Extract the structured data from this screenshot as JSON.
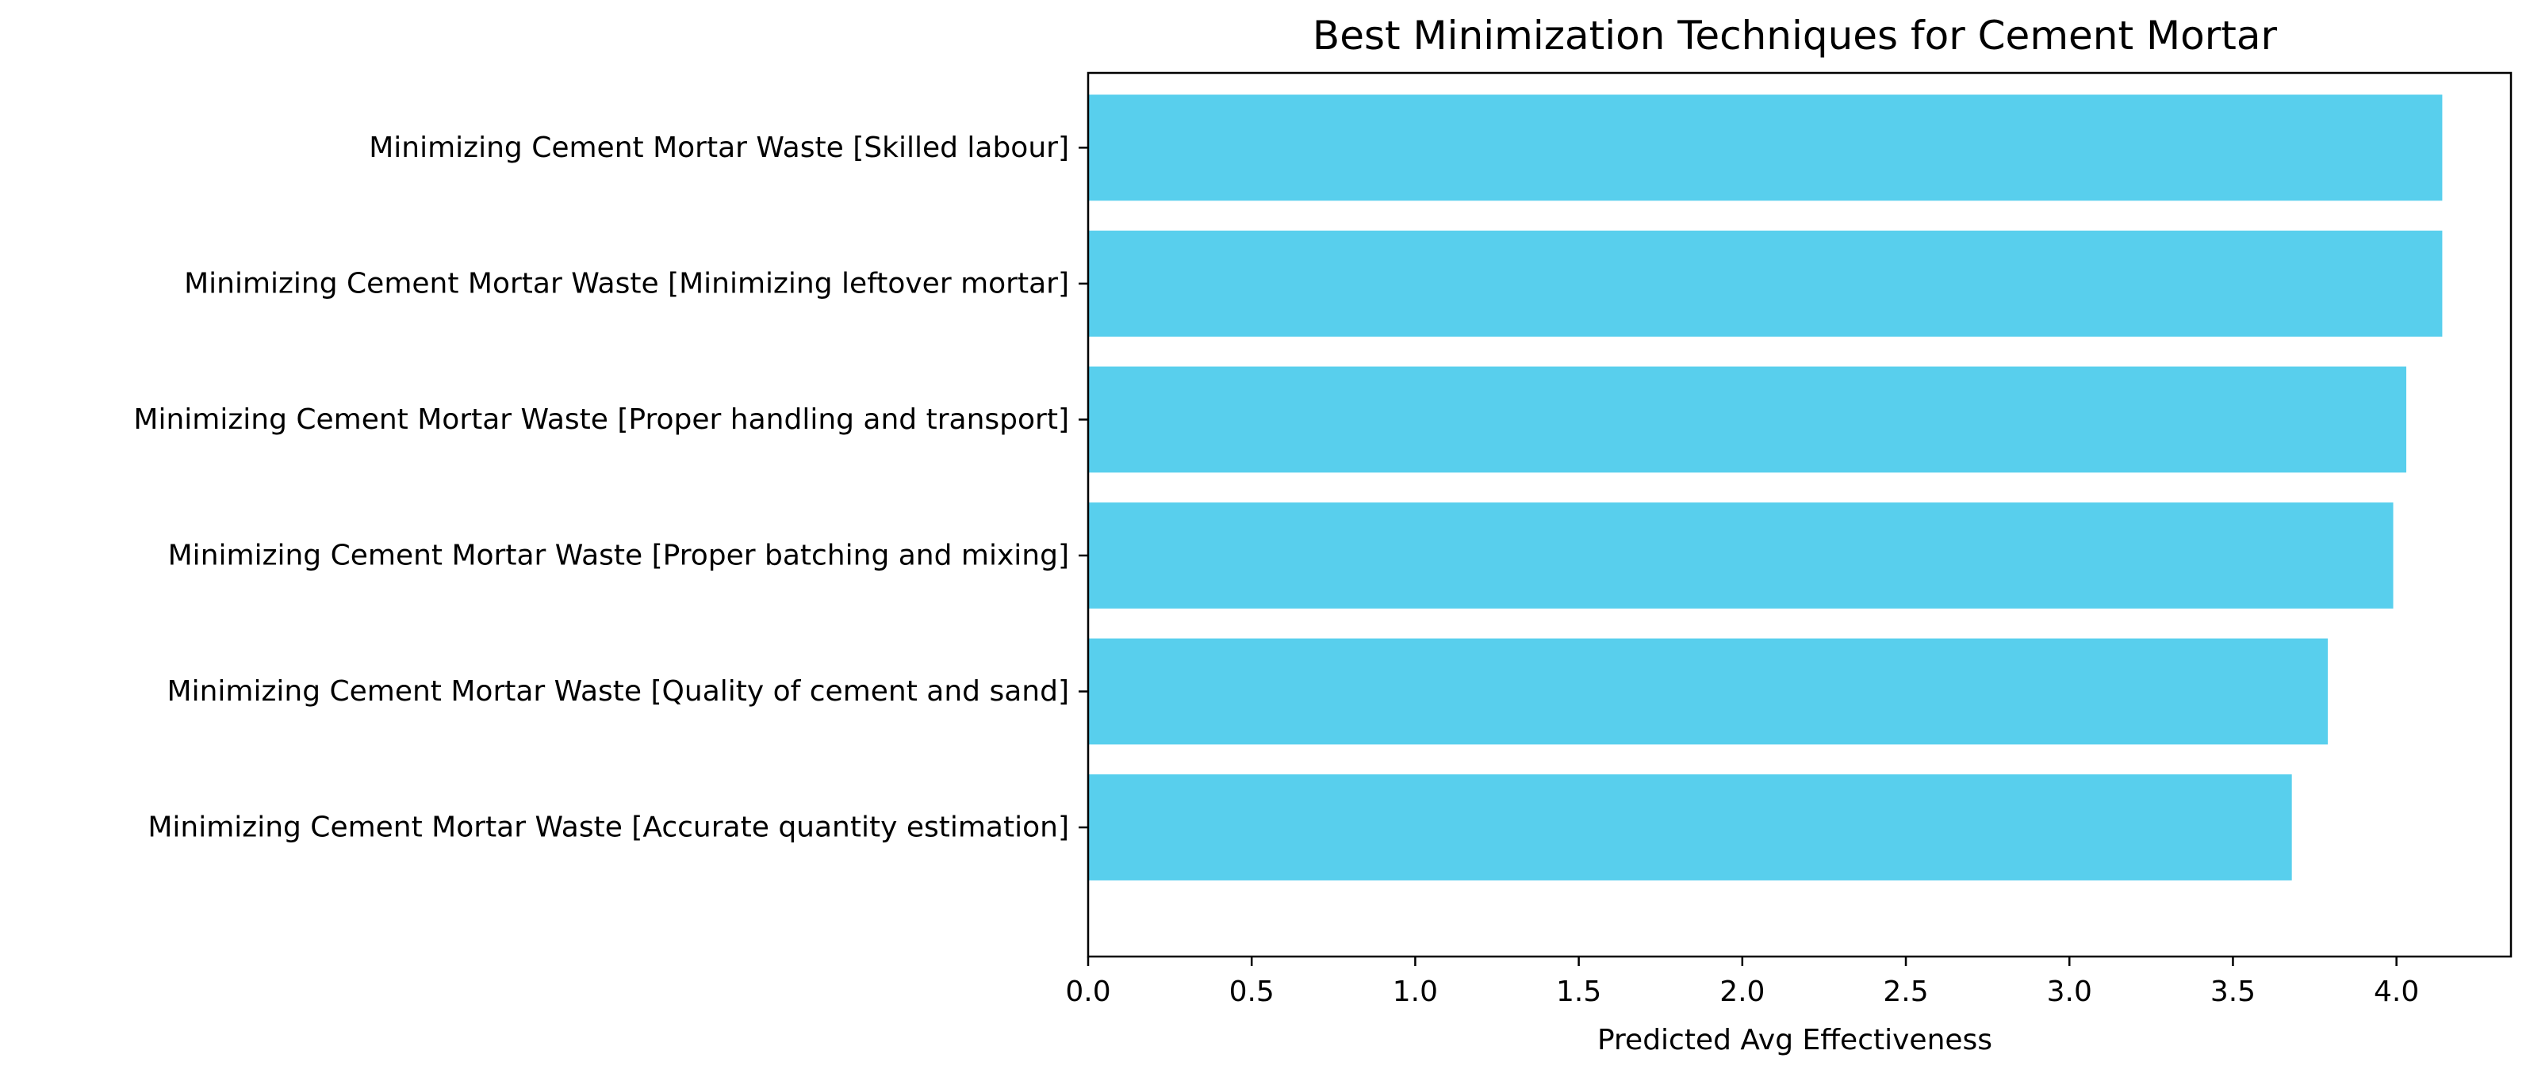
{
  "chart_data": {
    "type": "bar",
    "orientation": "horizontal",
    "title": "Best Minimization Techniques for Cement Mortar",
    "xlabel": "Predicted Avg Effectiveness",
    "ylabel": "",
    "categories": [
      "Minimizing Cement Mortar Waste [Skilled labour]",
      "Minimizing Cement Mortar Waste [Minimizing leftover mortar]",
      "Minimizing Cement Mortar Waste [Proper handling and transport]",
      "Minimizing Cement Mortar Waste [Proper batching and mixing]",
      "Minimizing Cement Mortar Waste [Quality of cement and sand]",
      "Minimizing Cement Mortar Waste [Accurate quantity estimation]"
    ],
    "values": [
      4.14,
      4.14,
      4.03,
      3.99,
      3.79,
      3.68
    ],
    "xlim": [
      0,
      4.35
    ],
    "xticks": [
      "0.0",
      "0.5",
      "1.0",
      "1.5",
      "2.0",
      "2.5",
      "3.0",
      "3.5",
      "4.0"
    ],
    "bar_color": "#58cfed",
    "grid": false,
    "legend": "none"
  }
}
